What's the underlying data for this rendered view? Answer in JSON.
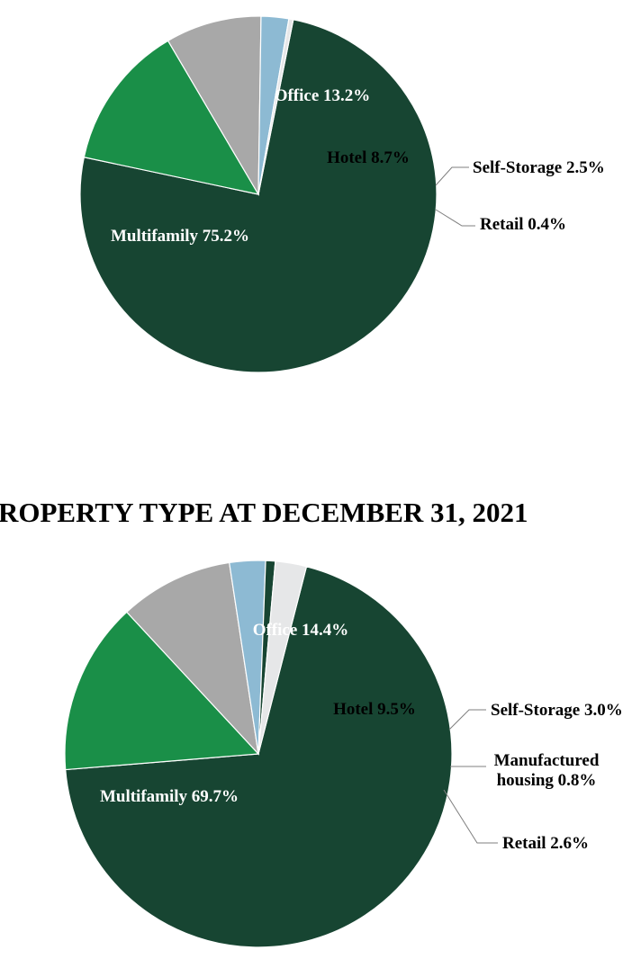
{
  "chart_data": [
    {
      "type": "pie",
      "title": "",
      "labels": [
        "Multifamily",
        "Office",
        "Hotel",
        "Self-Storage",
        "Retail"
      ],
      "values": [
        75.2,
        13.2,
        8.7,
        2.5,
        0.4
      ],
      "slice_labels": [
        "Multifamily 75.2%",
        "Office 13.2%",
        "Hotel 8.7%",
        "Self-Storage 2.5%",
        "Retail 0.4%"
      ],
      "colors": [
        "#174532",
        "#1a8f48",
        "#a8a8a8",
        "#8dbad3",
        "#e6e7e8"
      ]
    },
    {
      "type": "pie",
      "title": "ROPERTY TYPE AT DECEMBER 31, 2021",
      "labels": [
        "Multifamily",
        "Office",
        "Hotel",
        "Self-Storage",
        "Manufactured housing",
        "Retail"
      ],
      "values": [
        69.7,
        14.4,
        9.5,
        3.0,
        0.8,
        2.6
      ],
      "slice_labels": [
        "Multifamily 69.7%",
        "Office 14.4%",
        "Hotel 9.5%",
        "Self-Storage 3.0%",
        [
          "Manufactured",
          "housing 0.8%"
        ],
        "Retail 2.6%"
      ],
      "colors": [
        "#174532",
        "#1a8f48",
        "#a8a8a8",
        "#8dbad3",
        "#174532",
        "#e6e7e8"
      ]
    }
  ]
}
